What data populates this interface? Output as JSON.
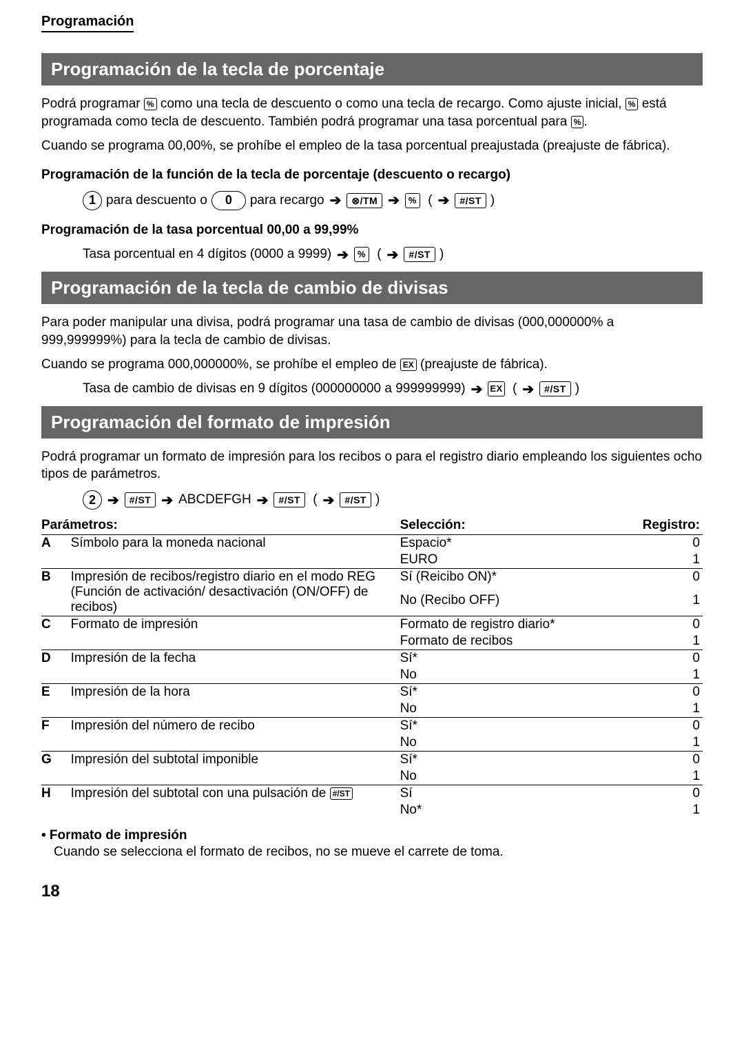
{
  "header": "Programación",
  "page_number": "18",
  "keys": {
    "percent": "%",
    "hash_st": "#/ST",
    "x_tm": "⊗/TM",
    "ex": "EX"
  },
  "section1": {
    "title": "Programación de la tecla de porcentaje",
    "p1a": "Podrá programar ",
    "p1b": " como una tecla de descuento o como una tecla de recargo. Como ajuste inicial, ",
    "p1c": " está programada como tecla de descuento. También podrá programar una tasa porcentual para ",
    "p1d": ".",
    "p2": "Cuando se programa 00,00%, se prohíbe el empleo de la tasa porcentual preajustada (preajuste de fábrica).",
    "sub1": "Programación de la función de la tecla de porcentaje (descuento o recargo)",
    "seq1_a": "1",
    "seq1_text1": "para descuento o",
    "seq1_b": "0",
    "seq1_text2": "para recargo",
    "sub2": "Programación de la tasa porcentual 00,00 a 99,99%",
    "seq2_text": "Tasa porcentual en 4 dígitos (0000 a 9999)"
  },
  "section2": {
    "title": "Programación de la tecla de cambio de divisas",
    "p1": "Para poder manipular una divisa, podrá programar una tasa de cambio de divisas (000,000000% a 999,999999%) para la tecla de cambio de divisas.",
    "p2a": "Cuando se programa 000,000000%, se prohíbe el empleo de ",
    "p2b": " (preajuste de fábrica).",
    "seq_text": "Tasa de cambio de divisas en 9 dígitos (000000000 a 999999999)"
  },
  "section3": {
    "title": "Programación del formato de impresión",
    "p1": "Podrá programar un formato de impresión para los recibos o para el registro diario empleando los siguientes ocho tipos de parámetros.",
    "seq_a": "2",
    "seq_mid": "ABCDEFGH",
    "table": {
      "headers": [
        "Parámetros:",
        "Selección:",
        "Registro:"
      ],
      "groups": [
        {
          "letter": "A",
          "param": "Símbolo para la moneda nacional",
          "rows": [
            {
              "sel": "Espacio*",
              "reg": "0"
            },
            {
              "sel": "EURO",
              "reg": "1"
            }
          ]
        },
        {
          "letter": "B",
          "param": "Impresión de recibos/registro diario en el modo REG (Función de activación/ desactivación (ON/OFF) de recibos)",
          "rows": [
            {
              "sel": "Sí (Reicibo ON)*",
              "reg": "0"
            },
            {
              "sel": "No (Recibo OFF)",
              "reg": "1"
            }
          ]
        },
        {
          "letter": "C",
          "param": "Formato de impresión",
          "rows": [
            {
              "sel": "Formato de registro diario*",
              "reg": "0"
            },
            {
              "sel": "Formato de recibos",
              "reg": "1"
            }
          ]
        },
        {
          "letter": "D",
          "param": "Impresión de la fecha",
          "rows": [
            {
              "sel": "Sí*",
              "reg": "0"
            },
            {
              "sel": "No",
              "reg": "1"
            }
          ]
        },
        {
          "letter": "E",
          "param": "Impresión de la hora",
          "rows": [
            {
              "sel": "Sí*",
              "reg": "0"
            },
            {
              "sel": "No",
              "reg": "1"
            }
          ]
        },
        {
          "letter": "F",
          "param": "Impresión del número de recibo",
          "rows": [
            {
              "sel": "Sí*",
              "reg": "0"
            },
            {
              "sel": "No",
              "reg": "1"
            }
          ]
        },
        {
          "letter": "G",
          "param": "Impresión del subtotal imponible",
          "rows": [
            {
              "sel": "Sí*",
              "reg": "0"
            },
            {
              "sel": "No",
              "reg": "1"
            }
          ]
        },
        {
          "letter": "H",
          "param_a": "Impresión del subtotal con una pulsación de ",
          "rows": [
            {
              "sel": "Sí",
              "reg": "0"
            },
            {
              "sel": "No*",
              "reg": "1"
            }
          ]
        }
      ]
    },
    "bullet_heading": "• Formato de impresión",
    "bullet_text": "Cuando se selecciona el formato de recibos, no se mueve el carrete de toma."
  }
}
